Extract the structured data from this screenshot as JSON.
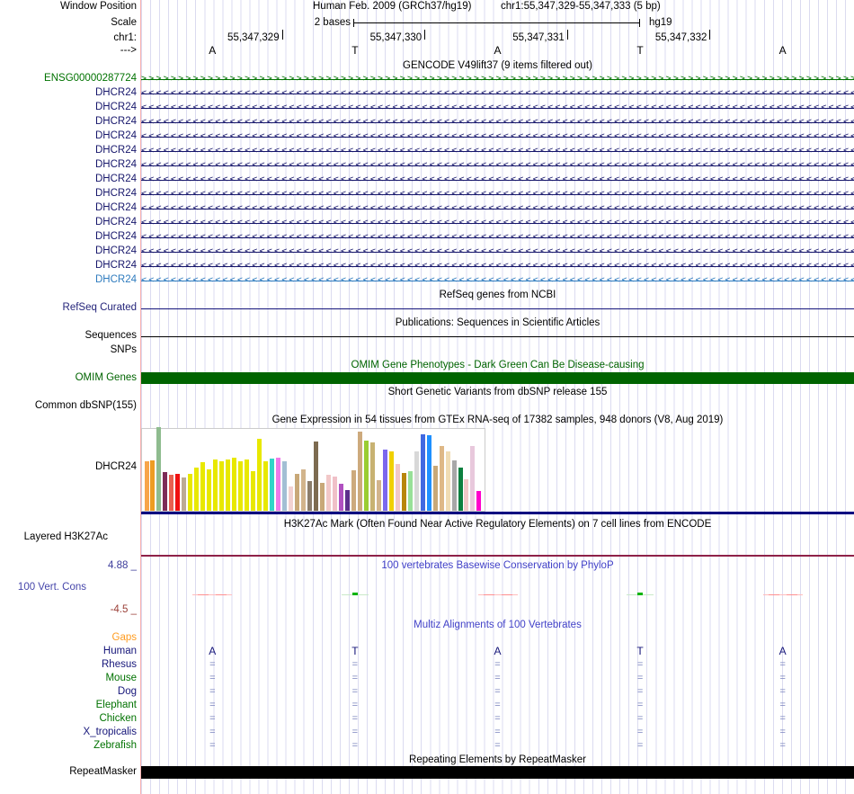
{
  "header": {
    "window_position_label": "Window Position",
    "assembly": "Human Feb. 2009 (GRCh37/hg19)",
    "position": "chr1:55,347,329-55,347,333 (5 bp)",
    "scale_label": "Scale",
    "scale_value": "2 bases",
    "genome": "hg19",
    "chrom_label": "chr1:",
    "ruler_numbers": [
      "55,347,329",
      "55,347,330",
      "55,347,331",
      "55,347,332"
    ],
    "strand_label": "--->",
    "bases": [
      "A",
      "T",
      "A",
      "T",
      "A"
    ]
  },
  "colors": {
    "grid": "#DBDBF0",
    "left_guide": "#F7AFAF",
    "navy_gene": "#16166B",
    "green_gene": "#007200",
    "steel_gene": "#2E7BBE",
    "omim_bar": "#006400",
    "gtex_baseline": "#000080",
    "h3k27ac_line": "#8E2148",
    "blue_title": "#4141C8",
    "repeat_bar": "#000000"
  },
  "gencode": {
    "title": "GENCODE V49lift37 (9 items filtered out)",
    "rows": [
      {
        "label": "ENSG00000287724",
        "color": "#007200",
        "dir": ">"
      },
      {
        "label": "DHCR24",
        "color": "#16166B",
        "dir": "<"
      },
      {
        "label": "DHCR24",
        "color": "#16166B",
        "dir": "<"
      },
      {
        "label": "DHCR24",
        "color": "#16166B",
        "dir": "<"
      },
      {
        "label": "DHCR24",
        "color": "#16166B",
        "dir": "<"
      },
      {
        "label": "DHCR24",
        "color": "#16166B",
        "dir": "<"
      },
      {
        "label": "DHCR24",
        "color": "#16166B",
        "dir": "<"
      },
      {
        "label": "DHCR24",
        "color": "#16166B",
        "dir": "<"
      },
      {
        "label": "DHCR24",
        "color": "#16166B",
        "dir": "<"
      },
      {
        "label": "DHCR24",
        "color": "#16166B",
        "dir": "<"
      },
      {
        "label": "DHCR24",
        "color": "#16166B",
        "dir": "<"
      },
      {
        "label": "DHCR24",
        "color": "#16166B",
        "dir": "<"
      },
      {
        "label": "DHCR24",
        "color": "#16166B",
        "dir": "<"
      },
      {
        "label": "DHCR24",
        "color": "#16166B",
        "dir": "<"
      },
      {
        "label": "DHCR24",
        "color": "#2E7BBE",
        "dir": "<"
      }
    ]
  },
  "refseq": {
    "title": "RefSeq genes from NCBI",
    "label": "RefSeq Curated",
    "label_color": "#24247A"
  },
  "publications": {
    "title": "Publications: Sequences in Scientific Articles",
    "label_sequences": "Sequences",
    "label_snps": "SNPs"
  },
  "omim": {
    "title": "OMIM Gene Phenotypes - Dark Green Can Be Disease-causing",
    "label": "OMIM Genes",
    "title_color": "#006400"
  },
  "dbsnp": {
    "title": "Short Genetic Variants from dbSNP release 155",
    "label": "Common dbSNP(155)"
  },
  "gtex": {
    "title": "Gene Expression in 54 tissues from GTEx RNA-seq of 17382 samples, 948 donors (V8, Aug 2019)",
    "label": "DHCR24"
  },
  "h3k27ac": {
    "title": "H3K27Ac Mark (Often Found Near Active Regulatory Elements) on 7 cell lines from ENCODE",
    "label": "Layered H3K27Ac"
  },
  "phylop": {
    "title": "100 vertebrates Basewise Conservation by PhyloP",
    "label": "100 Vert. Cons",
    "max_label": "4.88 _",
    "min_label": "-4.5 _",
    "max_color": "#3C3C9B",
    "min_color": "#9B4038",
    "label_color": "#4646AA",
    "marks": [
      "negative",
      "positive",
      "negative",
      "positive",
      "negative"
    ]
  },
  "multiz": {
    "title": "Multiz Alignments of 100 Vertebrates",
    "gaps_label": "Gaps",
    "gaps_color": "#FF9C20",
    "human_bases": [
      "A",
      "T",
      "A",
      "T",
      "A"
    ],
    "species": [
      {
        "name": "Human",
        "color": "#16167A"
      },
      {
        "name": "Rhesus",
        "color": "#16167A"
      },
      {
        "name": "Mouse",
        "color": "#007200"
      },
      {
        "name": "Dog",
        "color": "#16167A"
      },
      {
        "name": "Elephant",
        "color": "#007200"
      },
      {
        "name": "Chicken",
        "color": "#007200"
      },
      {
        "name": "X_tropicalis",
        "color": "#16167A"
      },
      {
        "name": "Zebrafish",
        "color": "#007200"
      }
    ],
    "align_glyph": "="
  },
  "repeatmasker": {
    "title": "Repeating Elements by RepeatMasker",
    "label": "RepeatMasker"
  },
  "chart_data": {
    "type": "bar",
    "title": "Gene Expression in 54 tissues from GTEx RNA-seq of 17382 samples, 948 donors (V8, Aug 2019)",
    "gene": "DHCR24",
    "n_tissues": 54,
    "ylim": [
      0,
      93
    ],
    "grid": false,
    "bars": [
      {
        "color": "#F7A54A",
        "h": 55
      },
      {
        "color": "#EE9C22",
        "h": 56
      },
      {
        "color": "#8FBC8F",
        "h": 93
      },
      {
        "color": "#7D2B57",
        "h": 43
      },
      {
        "color": "#E86050",
        "h": 40
      },
      {
        "color": "#F01010",
        "h": 41
      },
      {
        "color": "#BCAA94",
        "h": 37
      },
      {
        "color": "#E8E800",
        "h": 41
      },
      {
        "color": "#E8E800",
        "h": 48
      },
      {
        "color": "#E8E800",
        "h": 54
      },
      {
        "color": "#E8E800",
        "h": 46
      },
      {
        "color": "#E8E800",
        "h": 57
      },
      {
        "color": "#E8E800",
        "h": 55
      },
      {
        "color": "#E8E800",
        "h": 57
      },
      {
        "color": "#E8E800",
        "h": 59
      },
      {
        "color": "#E8E800",
        "h": 55
      },
      {
        "color": "#E8E800",
        "h": 57
      },
      {
        "color": "#E8E800",
        "h": 44
      },
      {
        "color": "#E8E800",
        "h": 80
      },
      {
        "color": "#E8E800",
        "h": 55
      },
      {
        "color": "#30D5C8",
        "h": 58
      },
      {
        "color": "#EE7AE9",
        "h": 59
      },
      {
        "color": "#A2BFD4",
        "h": 55
      },
      {
        "color": "#F2D2D2",
        "h": 27
      },
      {
        "color": "#C8A878",
        "h": 41
      },
      {
        "color": "#D2B48C",
        "h": 46
      },
      {
        "color": "#8B7D6B",
        "h": 33
      },
      {
        "color": "#7D6B50",
        "h": 77
      },
      {
        "color": "#C8A878",
        "h": 31
      },
      {
        "color": "#F2C8C8",
        "h": 40
      },
      {
        "color": "#F0C0C8",
        "h": 38
      },
      {
        "color": "#B050C0",
        "h": 30
      },
      {
        "color": "#5D2E8C",
        "h": 23
      },
      {
        "color": "#CDAA7D",
        "h": 45
      },
      {
        "color": "#CDAA7D",
        "h": 88
      },
      {
        "color": "#9ACD32",
        "h": 78
      },
      {
        "color": "#C8B272",
        "h": 76
      },
      {
        "color": "#D2B48C",
        "h": 34
      },
      {
        "color": "#7B68EE",
        "h": 68
      },
      {
        "color": "#F0D000",
        "h": 66
      },
      {
        "color": "#F2C8C8",
        "h": 52
      },
      {
        "color": "#B8860B",
        "h": 42
      },
      {
        "color": "#98E098",
        "h": 44
      },
      {
        "color": "#D8D8D8",
        "h": 66
      },
      {
        "color": "#4169E1",
        "h": 85
      },
      {
        "color": "#1E90FF",
        "h": 84
      },
      {
        "color": "#C8A878",
        "h": 50
      },
      {
        "color": "#DEB887",
        "h": 72
      },
      {
        "color": "#F0DCB4",
        "h": 66
      },
      {
        "color": "#A8A8A8",
        "h": 56
      },
      {
        "color": "#0E8040",
        "h": 48
      },
      {
        "color": "#F2C8C8",
        "h": 35
      },
      {
        "color": "#E8C8DC",
        "h": 72
      },
      {
        "color": "#FF00CC",
        "h": 22
      }
    ]
  }
}
